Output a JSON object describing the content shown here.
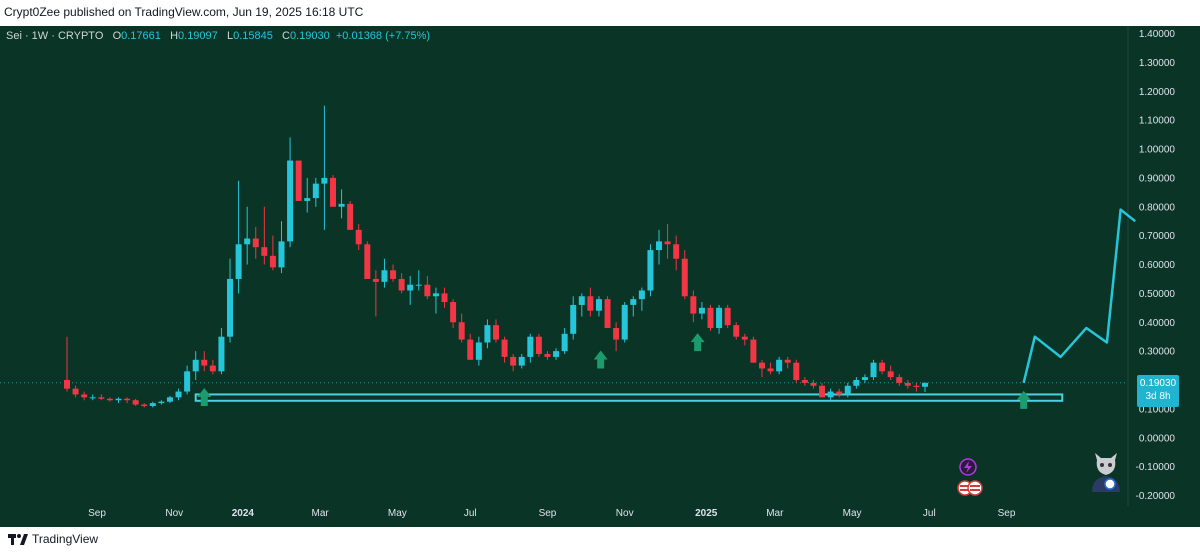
{
  "header": {
    "published": "Crypt0Zee published on TradingView.com, Jun 19, 2025 16:18 UTC"
  },
  "symbol": {
    "name": "Sei · 1W · CRYPTO",
    "open_label": "O",
    "open": "0.17661",
    "high_label": "H",
    "high": "0.19097",
    "low_label": "L",
    "low": "0.15845",
    "close_label": "C",
    "close": "0.19030",
    "change": "+0.01368 (+7.75%)"
  },
  "price_tag": {
    "price": "0.19030",
    "countdown": "3d 8h"
  },
  "footer": {
    "brand": "TradingView"
  },
  "colors": {
    "background": "#0a3425",
    "up": "#26c6da",
    "down": "#f23645",
    "arrow": "#1a9c6e",
    "projection": "#26c6da",
    "box": "#4dd0e1"
  },
  "chart_data": {
    "type": "candlestick",
    "title": "Sei · 1W · CRYPTO",
    "ylim": [
      -0.2,
      1.4
    ],
    "yticks": [
      "1.40000",
      "1.30000",
      "1.20000",
      "1.10000",
      "1.00000",
      "0.90000",
      "0.80000",
      "0.70000",
      "0.60000",
      "0.50000",
      "0.40000",
      "0.30000",
      "0.20000",
      "0.10000",
      "0.00000",
      "-0.10000",
      "-0.20000"
    ],
    "xtick_labels": [
      "Sep",
      "Nov",
      "2024",
      "Mar",
      "May",
      "Jul",
      "Sep",
      "Nov",
      "2025",
      "Mar",
      "May",
      "Jul",
      "Sep"
    ],
    "xtick_weeks": [
      3.5,
      12.5,
      20.5,
      29.5,
      38.5,
      47,
      56,
      65,
      74.5,
      82.5,
      91.5,
      100.5,
      109.5
    ],
    "candles": [
      [
        0.2,
        0.35,
        0.16,
        0.17
      ],
      [
        0.17,
        0.18,
        0.14,
        0.15
      ],
      [
        0.15,
        0.16,
        0.13,
        0.14
      ],
      [
        0.14,
        0.15,
        0.13,
        0.14
      ],
      [
        0.14,
        0.15,
        0.13,
        0.135
      ],
      [
        0.135,
        0.14,
        0.125,
        0.13
      ],
      [
        0.13,
        0.14,
        0.12,
        0.135
      ],
      [
        0.135,
        0.14,
        0.12,
        0.13
      ],
      [
        0.13,
        0.135,
        0.11,
        0.115
      ],
      [
        0.115,
        0.12,
        0.105,
        0.11
      ],
      [
        0.11,
        0.125,
        0.105,
        0.12
      ],
      [
        0.12,
        0.13,
        0.115,
        0.125
      ],
      [
        0.125,
        0.145,
        0.12,
        0.14
      ],
      [
        0.14,
        0.17,
        0.13,
        0.16
      ],
      [
        0.16,
        0.25,
        0.15,
        0.23
      ],
      [
        0.23,
        0.3,
        0.2,
        0.27
      ],
      [
        0.27,
        0.3,
        0.23,
        0.25
      ],
      [
        0.25,
        0.27,
        0.22,
        0.23
      ],
      [
        0.23,
        0.38,
        0.22,
        0.35
      ],
      [
        0.35,
        0.62,
        0.33,
        0.55
      ],
      [
        0.55,
        0.89,
        0.5,
        0.67
      ],
      [
        0.67,
        0.8,
        0.6,
        0.69
      ],
      [
        0.69,
        0.73,
        0.62,
        0.66
      ],
      [
        0.66,
        0.8,
        0.6,
        0.63
      ],
      [
        0.63,
        0.7,
        0.58,
        0.59
      ],
      [
        0.59,
        0.75,
        0.57,
        0.68
      ],
      [
        0.68,
        1.04,
        0.66,
        0.96
      ],
      [
        0.96,
        0.96,
        0.82,
        0.82
      ],
      [
        0.82,
        0.9,
        0.78,
        0.83
      ],
      [
        0.83,
        0.9,
        0.8,
        0.88
      ],
      [
        0.88,
        1.15,
        0.72,
        0.9
      ],
      [
        0.9,
        0.91,
        0.8,
        0.8
      ],
      [
        0.8,
        0.86,
        0.76,
        0.81
      ],
      [
        0.81,
        0.82,
        0.72,
        0.72
      ],
      [
        0.72,
        0.74,
        0.65,
        0.67
      ],
      [
        0.67,
        0.68,
        0.55,
        0.55
      ],
      [
        0.55,
        0.58,
        0.42,
        0.54
      ],
      [
        0.54,
        0.62,
        0.52,
        0.58
      ],
      [
        0.58,
        0.6,
        0.54,
        0.55
      ],
      [
        0.55,
        0.57,
        0.5,
        0.51
      ],
      [
        0.51,
        0.56,
        0.46,
        0.53
      ],
      [
        0.53,
        0.58,
        0.51,
        0.53
      ],
      [
        0.53,
        0.56,
        0.48,
        0.49
      ],
      [
        0.49,
        0.52,
        0.43,
        0.5
      ],
      [
        0.5,
        0.52,
        0.45,
        0.47
      ],
      [
        0.47,
        0.48,
        0.38,
        0.4
      ],
      [
        0.4,
        0.43,
        0.33,
        0.34
      ],
      [
        0.34,
        0.36,
        0.27,
        0.27
      ],
      [
        0.27,
        0.35,
        0.25,
        0.33
      ],
      [
        0.33,
        0.41,
        0.31,
        0.39
      ],
      [
        0.39,
        0.41,
        0.33,
        0.34
      ],
      [
        0.34,
        0.35,
        0.26,
        0.28
      ],
      [
        0.28,
        0.29,
        0.23,
        0.25
      ],
      [
        0.25,
        0.29,
        0.24,
        0.28
      ],
      [
        0.28,
        0.36,
        0.26,
        0.35
      ],
      [
        0.35,
        0.36,
        0.28,
        0.29
      ],
      [
        0.29,
        0.3,
        0.27,
        0.28
      ],
      [
        0.28,
        0.31,
        0.27,
        0.3
      ],
      [
        0.3,
        0.38,
        0.29,
        0.36
      ],
      [
        0.36,
        0.49,
        0.34,
        0.46
      ],
      [
        0.46,
        0.5,
        0.42,
        0.49
      ],
      [
        0.49,
        0.52,
        0.42,
        0.44
      ],
      [
        0.44,
        0.49,
        0.42,
        0.48
      ],
      [
        0.48,
        0.49,
        0.38,
        0.38
      ],
      [
        0.38,
        0.4,
        0.3,
        0.34
      ],
      [
        0.34,
        0.47,
        0.33,
        0.46
      ],
      [
        0.46,
        0.49,
        0.42,
        0.48
      ],
      [
        0.48,
        0.52,
        0.44,
        0.51
      ],
      [
        0.51,
        0.67,
        0.49,
        0.65
      ],
      [
        0.65,
        0.72,
        0.6,
        0.68
      ],
      [
        0.68,
        0.74,
        0.62,
        0.67
      ],
      [
        0.67,
        0.7,
        0.58,
        0.62
      ],
      [
        0.62,
        0.65,
        0.48,
        0.49
      ],
      [
        0.49,
        0.51,
        0.4,
        0.43
      ],
      [
        0.43,
        0.47,
        0.41,
        0.45
      ],
      [
        0.45,
        0.46,
        0.37,
        0.38
      ],
      [
        0.38,
        0.46,
        0.36,
        0.45
      ],
      [
        0.45,
        0.46,
        0.38,
        0.39
      ],
      [
        0.39,
        0.4,
        0.34,
        0.35
      ],
      [
        0.35,
        0.36,
        0.32,
        0.34
      ],
      [
        0.34,
        0.35,
        0.26,
        0.26
      ],
      [
        0.26,
        0.27,
        0.21,
        0.24
      ],
      [
        0.24,
        0.26,
        0.22,
        0.23
      ],
      [
        0.23,
        0.28,
        0.22,
        0.27
      ],
      [
        0.27,
        0.28,
        0.24,
        0.26
      ],
      [
        0.26,
        0.27,
        0.19,
        0.2
      ],
      [
        0.2,
        0.21,
        0.18,
        0.19
      ],
      [
        0.19,
        0.2,
        0.17,
        0.18
      ],
      [
        0.18,
        0.19,
        0.14,
        0.14
      ],
      [
        0.14,
        0.17,
        0.13,
        0.16
      ],
      [
        0.16,
        0.17,
        0.14,
        0.15
      ],
      [
        0.15,
        0.19,
        0.14,
        0.18
      ],
      [
        0.18,
        0.21,
        0.17,
        0.2
      ],
      [
        0.2,
        0.22,
        0.19,
        0.21
      ],
      [
        0.21,
        0.27,
        0.2,
        0.26
      ],
      [
        0.26,
        0.27,
        0.22,
        0.23
      ],
      [
        0.23,
        0.25,
        0.2,
        0.21
      ],
      [
        0.21,
        0.22,
        0.18,
        0.19
      ],
      [
        0.19,
        0.2,
        0.17,
        0.18
      ],
      [
        0.18,
        0.19,
        0.16,
        0.176
      ],
      [
        0.17661,
        0.19097,
        0.15845,
        0.1903
      ]
    ],
    "first_week": 0,
    "support_box": {
      "week_start": 15,
      "week_end": 116,
      "price_low": 0.128,
      "price_high": 0.15
    },
    "up_arrows": [
      {
        "week": 16,
        "price": 0.11
      },
      {
        "week": 62.2,
        "price": 0.24
      },
      {
        "week": 73.5,
        "price": 0.3
      },
      {
        "week": 111.5,
        "price": 0.1
      }
    ],
    "projection": [
      [
        111.5,
        0.1903
      ],
      [
        112.8,
        0.35
      ],
      [
        115.8,
        0.28
      ],
      [
        118.8,
        0.38
      ],
      [
        121.2,
        0.33
      ],
      [
        122.8,
        0.79
      ],
      [
        124.5,
        0.75
      ]
    ],
    "last_price": 0.1903
  }
}
